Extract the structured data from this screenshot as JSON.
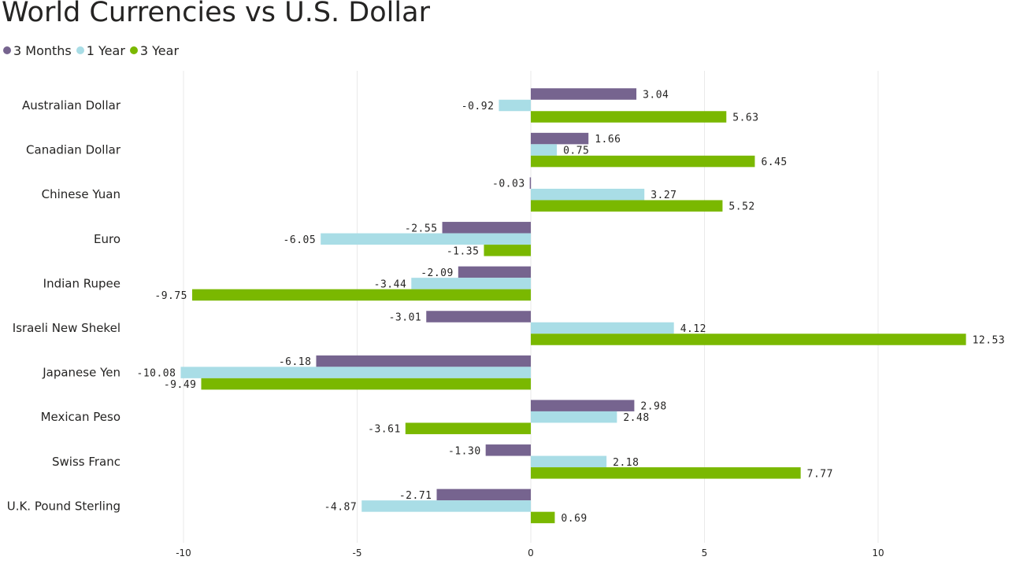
{
  "chart_data": {
    "type": "bar",
    "orientation": "horizontal",
    "title": "World Currencies vs U.S. Dollar",
    "categories": [
      "Australian Dollar",
      "Canadian Dollar",
      "Chinese Yuan",
      "Euro",
      "Indian Rupee",
      "Israeli New Shekel",
      "Japanese Yen",
      "Mexican Peso",
      "Swiss Franc",
      "U.K. Pound Sterling"
    ],
    "series": [
      {
        "name": "3 Months",
        "color": "#76648f",
        "values": [
          3.04,
          1.66,
          -0.03,
          -2.55,
          -2.09,
          -3.01,
          -6.18,
          2.98,
          -1.3,
          -2.71
        ],
        "labels": [
          "3.04",
          "1.66",
          "-0.03",
          "-2.55",
          "-2.09",
          "-3.01",
          "-6.18",
          "2.98",
          "-1.30",
          "-2.71"
        ]
      },
      {
        "name": "1 Year",
        "color": "#a9dde6",
        "values": [
          -0.92,
          0.75,
          3.27,
          -6.05,
          -3.44,
          4.12,
          -10.08,
          2.48,
          2.18,
          -4.87
        ],
        "labels": [
          "-0.92",
          "0.75",
          "3.27",
          "-6.05",
          "-3.44",
          "4.12",
          "-10.08",
          "2.48",
          "2.18",
          "-4.87"
        ]
      },
      {
        "name": "3 Year",
        "color": "#7ab800",
        "values": [
          5.63,
          6.45,
          5.52,
          -1.35,
          -9.75,
          12.53,
          -9.49,
          -3.61,
          7.77,
          0.69
        ],
        "labels": [
          "5.63",
          "6.45",
          "5.52",
          "-1.35",
          "-9.75",
          "12.53",
          "-9.49",
          "-3.61",
          "7.77",
          "0.69"
        ]
      }
    ],
    "xlim": [
      -10.5,
      13.5
    ],
    "xticks": [
      -10,
      -5,
      0,
      5,
      10
    ],
    "xtick_labels": [
      "-10",
      "-5",
      "0",
      "5",
      "10"
    ],
    "grid": true,
    "legend_position": "top-left",
    "xlabel": "",
    "ylabel": ""
  }
}
